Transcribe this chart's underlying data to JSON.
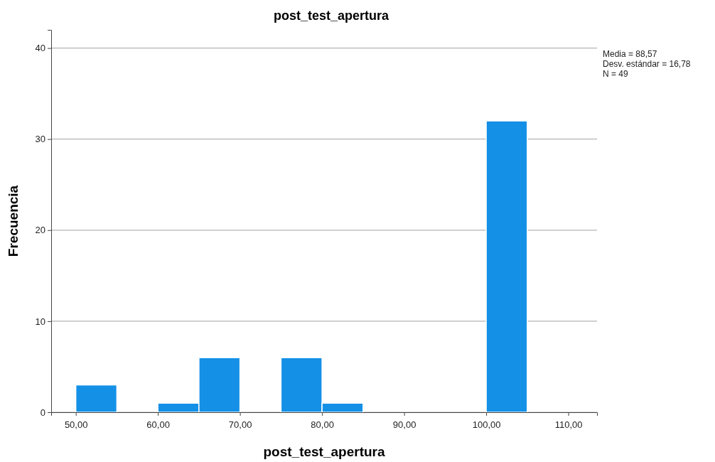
{
  "chart_data": {
    "type": "histogram",
    "title": "post_test_apertura",
    "xlabel": "post_test_apertura",
    "ylabel": "Frecuencia",
    "bins": [
      50,
      55,
      60,
      65,
      70,
      75,
      80,
      85,
      90,
      95,
      100,
      105
    ],
    "values": [
      3,
      0,
      1,
      6,
      0,
      6,
      1,
      0,
      0,
      0,
      32
    ],
    "color": "#1490e6",
    "xlim": [
      47,
      113.5
    ],
    "xticks": [
      {
        "value": 50,
        "label": "50,00"
      },
      {
        "value": 60,
        "label": "60,00"
      },
      {
        "value": 70,
        "label": "70,00"
      },
      {
        "value": 80,
        "label": "80,00"
      },
      {
        "value": 90,
        "label": "90,00"
      },
      {
        "value": 100,
        "label": "100,00"
      },
      {
        "value": 110,
        "label": "110,00"
      }
    ],
    "ylim": [
      0,
      42
    ],
    "yticks": [
      0,
      10,
      20,
      30,
      40
    ],
    "grid": "y",
    "annotations": [
      "Media = 88,57",
      "Desv. estándar = 16,78",
      "N = 49"
    ]
  }
}
